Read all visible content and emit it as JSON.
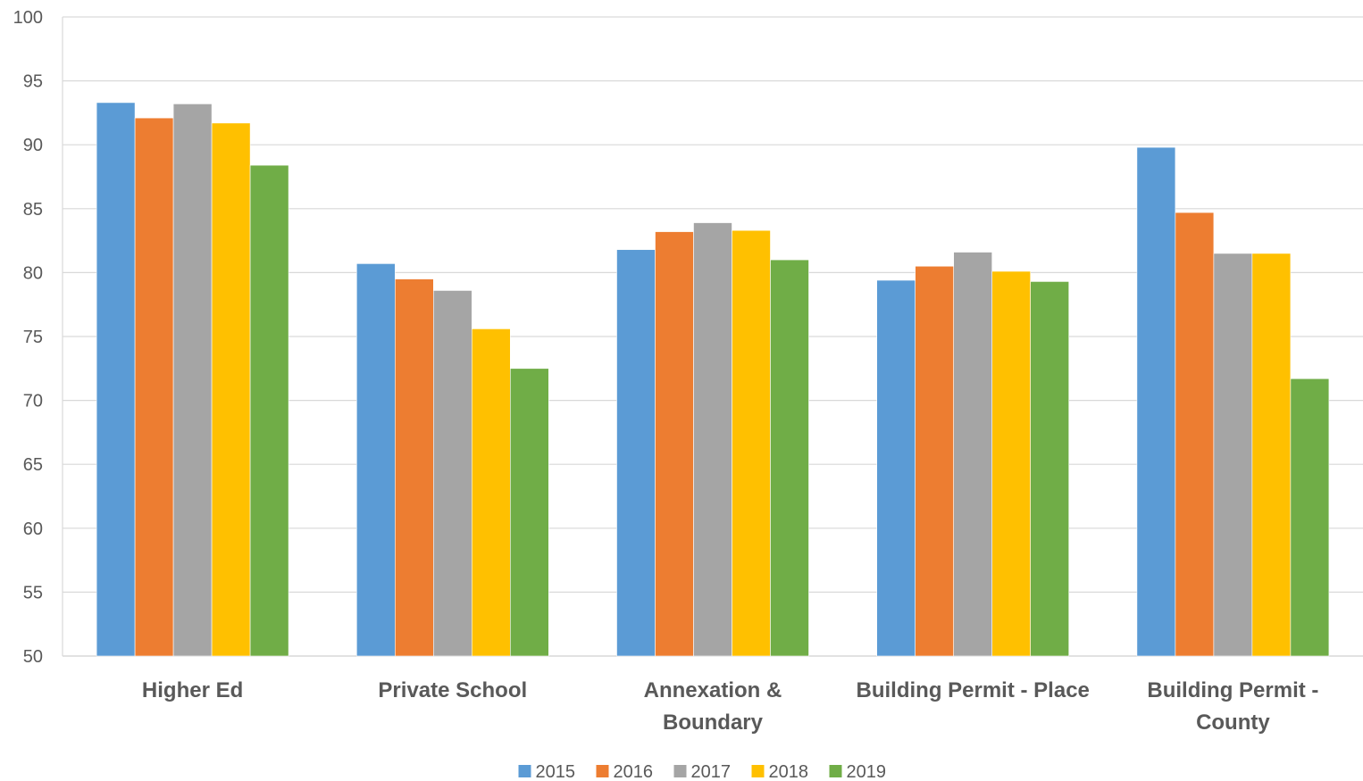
{
  "chart_data": {
    "type": "bar",
    "title": "",
    "xlabel": "",
    "ylabel": "",
    "ylim": [
      50,
      100
    ],
    "yticks": [
      50,
      55,
      60,
      65,
      70,
      75,
      80,
      85,
      90,
      95,
      100
    ],
    "grid": true,
    "legend_position": "bottom",
    "categories": [
      [
        "Higher Ed"
      ],
      [
        "Private School"
      ],
      [
        "Annexation &",
        "Boundary"
      ],
      [
        "Building Permit - Place"
      ],
      [
        "Building Permit -",
        "County"
      ]
    ],
    "series": [
      {
        "name": "2015",
        "color": "#5B9BD5",
        "values": [
          93.3,
          80.7,
          81.8,
          79.4,
          89.8
        ]
      },
      {
        "name": "2016",
        "color": "#ED7D31",
        "values": [
          92.1,
          79.5,
          83.2,
          80.5,
          84.7
        ]
      },
      {
        "name": "2017",
        "color": "#A5A5A5",
        "values": [
          93.2,
          78.6,
          83.9,
          81.6,
          81.5
        ]
      },
      {
        "name": "2018",
        "color": "#FFC000",
        "values": [
          91.7,
          75.6,
          83.3,
          80.1,
          81.5
        ]
      },
      {
        "name": "2019",
        "color": "#70AD47",
        "values": [
          88.4,
          72.5,
          81.0,
          79.3,
          71.7
        ]
      }
    ]
  }
}
